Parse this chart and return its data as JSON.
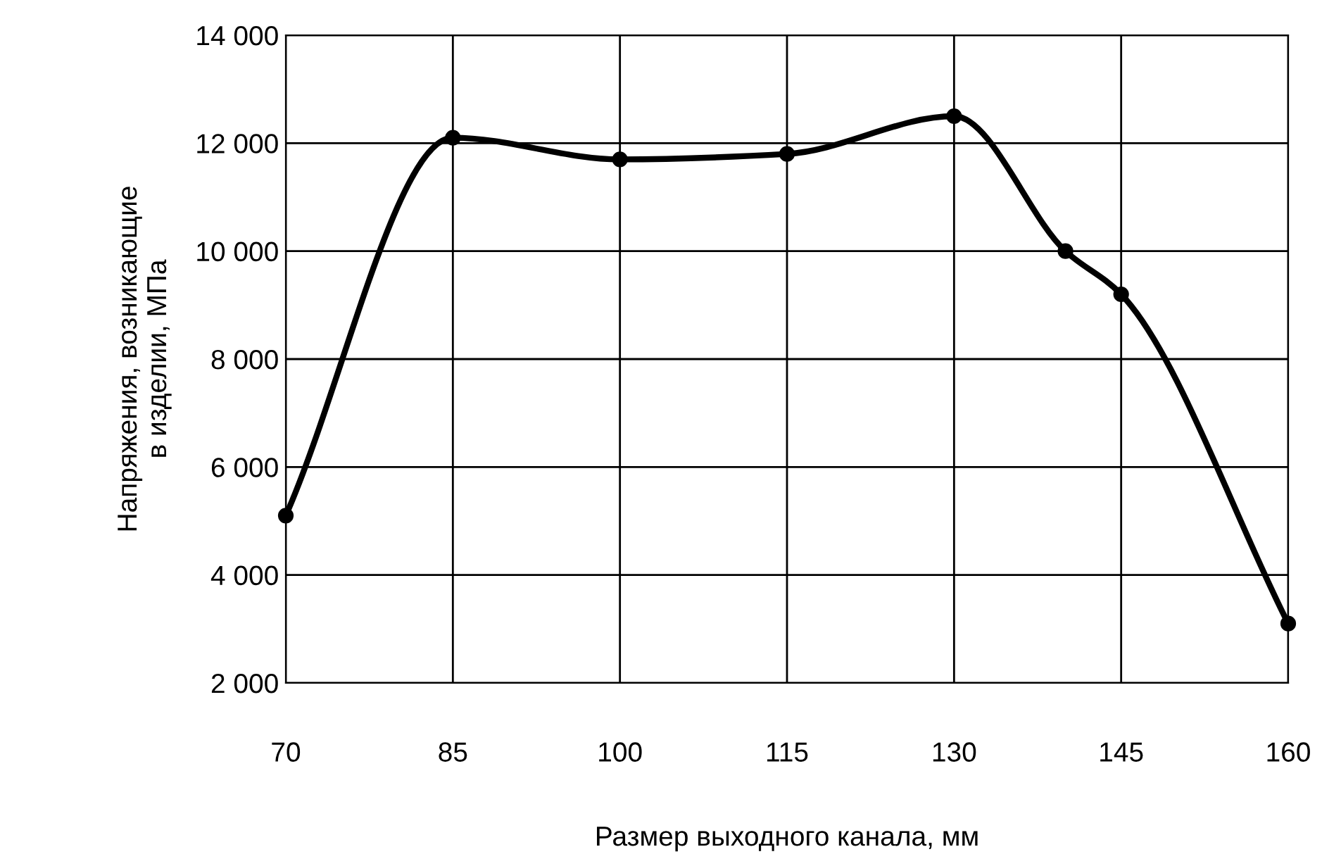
{
  "chart_data": {
    "type": "line",
    "xlabel": "Размер выходного канала, мм",
    "ylabel": "Напряжения, возникающие\nв изделии, МПа",
    "x": [
      70,
      85,
      100,
      115,
      130,
      140,
      145,
      160
    ],
    "series": [
      {
        "color": "#000000",
        "values": [
          5100,
          12100,
          11700,
          11800,
          12500,
          10000,
          9200,
          3100
        ]
      }
    ],
    "xlim": [
      70,
      160
    ],
    "xticks": [
      70,
      85,
      100,
      115,
      130,
      145,
      160
    ],
    "ylim": [
      2000,
      14000
    ],
    "yticks": [
      {
        "value": 2000,
        "label": "2 000"
      },
      {
        "value": 4000,
        "label": "4 000"
      },
      {
        "value": 6000,
        "label": "6 000"
      },
      {
        "value": 8000,
        "label": "8 000"
      },
      {
        "value": 10000,
        "label": "10 000"
      },
      {
        "value": 12000,
        "label": "12 000"
      },
      {
        "value": 14000,
        "label": "14 000"
      }
    ],
    "grid": true,
    "marker": "circle",
    "line_style": "solid"
  }
}
